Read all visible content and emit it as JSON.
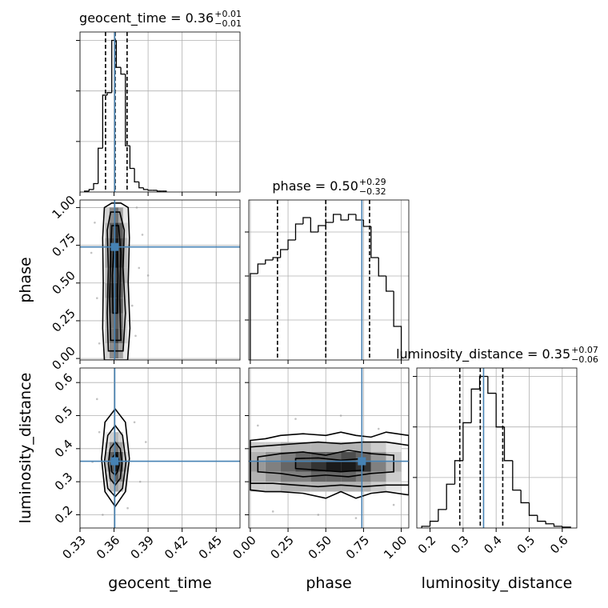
{
  "chart_data": {
    "type": "corner",
    "truth_color": "#4682b4",
    "hist_color": "#000000",
    "contour_color": "#000000",
    "point_color": "#9a9a9a",
    "grid": true,
    "parameters": [
      {
        "label": "geocent_time",
        "title": "geocent_time = 0.36",
        "title_plus": "+0.01",
        "title_minus": "−0.01",
        "lim": [
          0.33,
          0.471
        ],
        "ticks": [
          0.33,
          0.36,
          0.39,
          0.42,
          0.45
        ],
        "truth": 0.3606,
        "quantiles": [
          0.3525,
          0.361,
          0.3715
        ],
        "hist": {
          "bins": [
            0.334,
            0.338,
            0.342,
            0.346,
            0.35,
            0.354,
            0.358,
            0.362,
            0.366,
            0.37,
            0.374,
            0.378,
            0.382,
            0.386,
            0.39,
            0.394,
            0.398,
            0.402,
            0.406
          ],
          "counts": [
            1,
            3,
            10,
            52,
            115,
            118,
            180,
            148,
            140,
            55,
            28,
            12,
            5,
            3,
            2,
            2,
            1,
            1
          ],
          "ylim": [
            0,
            190
          ],
          "yticks": [
            60,
            120,
            180
          ]
        }
      },
      {
        "label": "phase",
        "title": "phase = 0.50",
        "title_plus": "+0.29",
        "title_minus": "−0.32",
        "lim": [
          -0.01,
          1.05
        ],
        "ticks": [
          {
            "value": 0,
            "label": "0.00"
          },
          0.25,
          {
            "value": 0.5,
            "label": "0.50"
          },
          0.75,
          {
            "value": 1,
            "label": "1.00"
          }
        ],
        "truth": 0.739,
        "quantiles": [
          0.18,
          0.5,
          0.79
        ],
        "hist": {
          "bins": [
            0,
            0.05,
            0.1,
            0.15,
            0.2,
            0.25,
            0.3,
            0.35,
            0.4,
            0.45,
            0.5,
            0.55,
            0.6,
            0.65,
            0.7,
            0.75,
            0.8,
            0.85,
            0.9,
            0.95,
            1.0
          ],
          "counts": [
            108,
            120,
            125,
            128,
            138,
            150,
            170,
            178,
            160,
            168,
            172,
            182,
            175,
            182,
            175,
            167,
            128,
            105,
            86,
            42
          ],
          "ylim": [
            0,
            200
          ],
          "yticks": [
            50,
            105,
            160
          ]
        }
      },
      {
        "label": "luminosity_distance",
        "title": "luminosity_distance = 0.35",
        "title_plus": "+0.07",
        "title_minus": "−0.06",
        "lim": [
          0.16,
          0.644
        ],
        "ticks": [
          0.2,
          0.3,
          0.4,
          0.5,
          0.6
        ],
        "truth": 0.362,
        "quantiles": [
          0.29,
          0.352,
          0.42
        ],
        "hist": {
          "bins": [
            0.175,
            0.2,
            0.225,
            0.25,
            0.275,
            0.3,
            0.325,
            0.35,
            0.375,
            0.4,
            0.425,
            0.45,
            0.475,
            0.5,
            0.525,
            0.55,
            0.575,
            0.6,
            0.625
          ],
          "counts": [
            2,
            8,
            22,
            52,
            80,
            125,
            165,
            180,
            160,
            120,
            80,
            45,
            30,
            15,
            8,
            5,
            2,
            1
          ],
          "ylim": [
            0,
            190
          ],
          "yticks": [
            60,
            120,
            180
          ]
        }
      }
    ],
    "panels": [
      {
        "hist2d": {
          "xbins": [
            0.352,
            0.356,
            0.36,
            0.364,
            0.368,
            0.372
          ],
          "ybins": [
            0,
            0.1,
            0.2,
            0.3,
            0.4,
            0.5,
            0.6,
            0.7,
            0.8,
            0.9,
            1.0
          ],
          "counts": [
            [
              2,
              5,
              6,
              4,
              1
            ],
            [
              3,
              6,
              8,
              6,
              2
            ],
            [
              3,
              6,
              7,
              6,
              2
            ],
            [
              3,
              7,
              9,
              7,
              2
            ],
            [
              4,
              8,
              9,
              7,
              2
            ],
            [
              3,
              7,
              8,
              7,
              3
            ],
            [
              4,
              8,
              10,
              8,
              3
            ],
            [
              4,
              8,
              10,
              8,
              3
            ],
            [
              3,
              7,
              9,
              7,
              2
            ],
            [
              2,
              5,
              6,
              4,
              1
            ]
          ]
        },
        "points": {
          "x": [
            0.343,
            0.382,
            0.379,
            0.345,
            0.385,
            0.34,
            0.376,
            0.39,
            0.347,
            0.38
          ],
          "y": [
            0.9,
            0.6,
            0.15,
            0.4,
            0.82,
            0.7,
            0.35,
            0.55,
            0.1,
            1.0
          ]
        },
        "contours": [
          {
            "x": [
              0.3515,
              0.35,
              0.3505,
              0.35,
              0.3515,
              0.358,
              0.366,
              0.3725,
              0.3735,
              0.3725,
              0.374,
              0.372
            ],
            "y": [
              -0.01,
              0.2,
              0.5,
              0.8,
              1.0,
              1.03,
              1.03,
              1.0,
              0.8,
              0.5,
              0.2,
              -0.01
            ]
          },
          {
            "x": [
              0.355,
              0.354,
              0.355,
              0.354,
              0.357,
              0.365,
              0.369,
              0.368,
              0.37,
              0.368
            ],
            "y": [
              0.05,
              0.3,
              0.6,
              0.85,
              0.97,
              0.97,
              0.85,
              0.6,
              0.3,
              0.05
            ]
          },
          {
            "x": [
              0.357,
              0.356,
              0.357,
              0.358,
              0.364,
              0.366,
              0.365,
              0.366
            ],
            "y": [
              0.12,
              0.4,
              0.7,
              0.88,
              0.88,
              0.7,
              0.4,
              0.12
            ]
          },
          {
            "x": [
              0.359,
              0.3585,
              0.36,
              0.363,
              0.3635,
              0.363
            ],
            "y": [
              0.3,
              0.55,
              0.75,
              0.75,
              0.55,
              0.3
            ]
          }
        ]
      },
      {
        "hist2d": {
          "xbins": [
            0.352,
            0.356,
            0.36,
            0.364,
            0.368,
            0.372
          ],
          "ybins": [
            0.27,
            0.3,
            0.33,
            0.36,
            0.39,
            0.42,
            0.45
          ],
          "counts": [
            [
              1,
              3,
              4,
              3,
              1
            ],
            [
              2,
              5,
              7,
              5,
              2
            ],
            [
              3,
              7,
              10,
              7,
              3
            ],
            [
              3,
              7,
              10,
              7,
              2
            ],
            [
              2,
              5,
              6,
              4,
              1
            ],
            [
              1,
              2,
              3,
              2,
              0
            ]
          ]
        },
        "points": {
          "x": [
            0.345,
            0.378,
            0.383,
            0.341,
            0.372,
            0.35,
            0.388,
            0.347
          ],
          "y": [
            0.55,
            0.48,
            0.3,
            0.36,
            0.22,
            0.2,
            0.42,
            0.45
          ]
        },
        "contours": [
          {
            "x": [
              0.361,
              0.37,
              0.3735,
              0.37,
              0.361,
              0.352,
              0.349,
              0.352
            ],
            "y": [
              0.52,
              0.48,
              0.37,
              0.27,
              0.225,
              0.27,
              0.37,
              0.48
            ]
          },
          {
            "x": [
              0.361,
              0.3675,
              0.3705,
              0.3675,
              0.361,
              0.3545,
              0.3515,
              0.3545
            ],
            "y": [
              0.47,
              0.44,
              0.36,
              0.28,
              0.255,
              0.28,
              0.36,
              0.44
            ]
          },
          {
            "x": [
              0.361,
              0.3655,
              0.367,
              0.3655,
              0.361,
              0.3565,
              0.355,
              0.3565
            ],
            "y": [
              0.42,
              0.4,
              0.355,
              0.31,
              0.29,
              0.31,
              0.355,
              0.4
            ]
          },
          {
            "x": [
              0.361,
              0.364,
              0.3645,
              0.363,
              0.361,
              0.358,
              0.3575,
              0.358
            ],
            "y": [
              0.385,
              0.37,
              0.35,
              0.33,
              0.32,
              0.33,
              0.35,
              0.37
            ]
          }
        ]
      },
      {
        "hist2d": {
          "xbins": [
            0,
            0.1,
            0.2,
            0.3,
            0.4,
            0.5,
            0.6,
            0.7,
            0.8,
            0.9,
            1.0
          ],
          "ybins": [
            0.27,
            0.3,
            0.33,
            0.36,
            0.39,
            0.42
          ],
          "counts": [
            [
              2,
              2,
              3,
              3,
              3,
              3,
              3,
              3,
              2,
              1
            ],
            [
              3,
              4,
              5,
              5,
              6,
              6,
              6,
              5,
              4,
              2
            ],
            [
              4,
              5,
              6,
              7,
              8,
              9,
              9,
              8,
              5,
              3
            ],
            [
              3,
              4,
              5,
              6,
              6,
              6,
              7,
              6,
              4,
              2
            ],
            [
              2,
              2,
              3,
              3,
              3,
              3,
              3,
              3,
              2,
              1
            ]
          ]
        },
        "points": {
          "x": [
            0.05,
            0.3,
            0.6,
            0.85,
            0.15,
            0.45,
            0.95,
            0.7
          ],
          "y": [
            0.47,
            0.49,
            0.5,
            0.46,
            0.21,
            0.2,
            0.23,
            0.19
          ]
        },
        "contours": [
          {
            "x": [
              0,
              0.1,
              0.2,
              0.35,
              0.5,
              0.6,
              0.7,
              0.8,
              0.9,
              1.05,
              1.05,
              0.9,
              0.8,
              0.7,
              0.6,
              0.5,
              0.35,
              0.2,
              0.1,
              0
            ],
            "y": [
              0.425,
              0.43,
              0.44,
              0.445,
              0.44,
              0.45,
              0.44,
              0.435,
              0.45,
              0.44,
              0.26,
              0.27,
              0.265,
              0.25,
              0.27,
              0.25,
              0.265,
              0.27,
              0.27,
              0.275
            ]
          },
          {
            "x": [
              0,
              0.15,
              0.3,
              0.45,
              0.6,
              0.75,
              0.9,
              1.05,
              1.05,
              0.9,
              0.75,
              0.6,
              0.45,
              0.3,
              0.15,
              0
            ],
            "y": [
              0.405,
              0.41,
              0.415,
              0.42,
              0.415,
              0.42,
              0.42,
              0.41,
              0.29,
              0.29,
              0.285,
              0.29,
              0.285,
              0.29,
              0.295,
              0.295
            ]
          },
          {
            "x": [
              0.05,
              0.2,
              0.35,
              0.5,
              0.65,
              0.8,
              0.95,
              0.95,
              0.8,
              0.65,
              0.5,
              0.35,
              0.2,
              0.05
            ],
            "y": [
              0.375,
              0.385,
              0.39,
              0.38,
              0.395,
              0.385,
              0.38,
              0.33,
              0.325,
              0.315,
              0.32,
              0.315,
              0.325,
              0.33
            ]
          },
          {
            "x": [
              0.3,
              0.45,
              0.6,
              0.75,
              0.75,
              0.6,
              0.45,
              0.3
            ],
            "y": [
              0.37,
              0.372,
              0.365,
              0.37,
              0.335,
              0.33,
              0.335,
              0.34
            ]
          }
        ]
      }
    ]
  }
}
